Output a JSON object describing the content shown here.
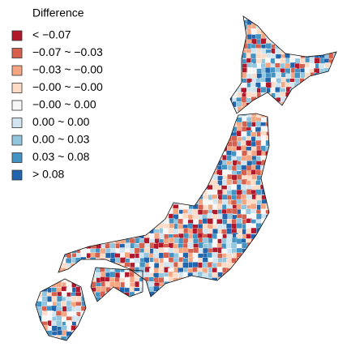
{
  "legend": {
    "title": "Difference",
    "items": [
      {
        "label": "< −0.07",
        "color": "#b2182b"
      },
      {
        "label": "−0.07 ~ −0.03",
        "color": "#d6604d"
      },
      {
        "label": "−0.03 ~ −0.00",
        "color": "#f4a582"
      },
      {
        "label": "−0.00 ~ −0.00",
        "color": "#fddbc7"
      },
      {
        "label": "−0.00 ~ 0.00",
        "color": "#f7f7f7"
      },
      {
        "label": "0.00 ~ 0.00",
        "color": "#d1e5f0"
      },
      {
        "label": "0.00 ~ 0.03",
        "color": "#92c5de"
      },
      {
        "label": "0.03 ~ 0.08",
        "color": "#4393c3"
      },
      {
        "label": "> 0.08",
        "color": "#2166ac"
      }
    ]
  }
}
